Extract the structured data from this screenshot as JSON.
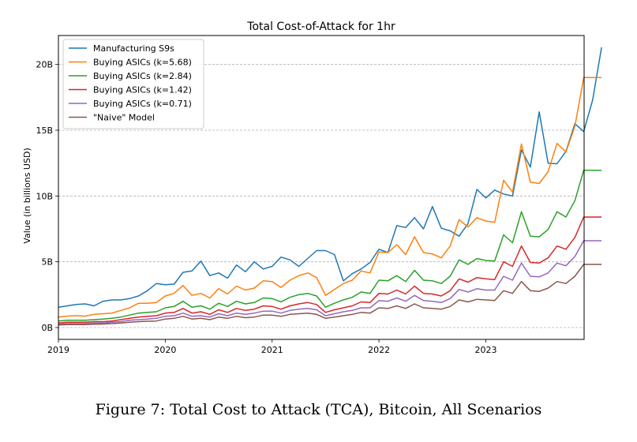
{
  "caption": "Figure 7: Total Cost to Attack (TCA), Bitcoin, All Scenarios",
  "chart_data": {
    "type": "line",
    "title": "Total Cost-of-Attack for 1hr",
    "xlabel": "",
    "ylabel": "Value (in billions USD)",
    "xlim": [
      2019.0,
      2023.92
    ],
    "ylim": [
      -0.9,
      22.2
    ],
    "x_ticks": [
      2019,
      2020,
      2021,
      2022,
      2023
    ],
    "y_ticks": [
      {
        "value": 0,
        "label": "0B"
      },
      {
        "value": 5,
        "label": "5B"
      },
      {
        "value": 10,
        "label": "10B"
      },
      {
        "value": 15,
        "label": "15B"
      },
      {
        "value": 20,
        "label": "20B"
      }
    ],
    "grid": "horizontal dashed",
    "legend_position": "top-left",
    "x_start_year": 2019,
    "x_step_months": 1,
    "series": [
      {
        "name": "Manufacturing S9s",
        "color": "#1f77b4",
        "values": [
          1.55,
          1.65,
          1.75,
          1.8,
          1.65,
          2.0,
          2.1,
          2.1,
          2.2,
          2.4,
          2.8,
          3.35,
          3.25,
          3.3,
          4.2,
          4.3,
          5.05,
          3.95,
          4.15,
          3.75,
          4.75,
          4.25,
          5.0,
          4.45,
          4.65,
          5.35,
          5.15,
          4.65,
          5.25,
          5.85,
          5.85,
          5.55,
          3.55,
          4.1,
          4.45,
          4.95,
          5.95,
          5.7,
          7.75,
          7.6,
          8.35,
          7.5,
          9.2,
          7.55,
          7.35,
          6.95,
          7.9,
          10.5,
          9.85,
          10.45,
          10.15,
          10.0,
          13.5,
          12.2,
          16.4,
          12.5,
          12.45,
          13.4,
          15.5,
          14.9,
          17.3,
          21.3
        ]
      },
      {
        "name": "Buying ASICs (k=5.68)",
        "color": "#ff7f0e",
        "values": [
          0.8,
          0.87,
          0.9,
          0.87,
          1.0,
          1.05,
          1.1,
          1.3,
          1.5,
          1.85,
          1.85,
          1.9,
          2.4,
          2.6,
          3.2,
          2.45,
          2.6,
          2.25,
          2.95,
          2.55,
          3.15,
          2.85,
          3.0,
          3.55,
          3.5,
          3.05,
          3.6,
          3.95,
          4.15,
          3.8,
          2.45,
          2.9,
          3.35,
          3.6,
          4.3,
          4.15,
          5.75,
          5.7,
          6.3,
          5.55,
          6.9,
          5.7,
          5.6,
          5.3,
          6.2,
          8.2,
          7.65,
          8.35,
          8.1,
          8.0,
          11.2,
          10.3,
          13.95,
          11.05,
          10.95,
          11.85,
          14.0,
          13.35,
          15.3,
          19.0,
          19.0,
          19.0
        ]
      },
      {
        "name": "Buying ASICs (k=2.84)",
        "color": "#2ca02c",
        "values": [
          0.5,
          0.55,
          0.55,
          0.55,
          0.6,
          0.65,
          0.7,
          0.8,
          0.95,
          1.1,
          1.15,
          1.2,
          1.5,
          1.6,
          2.0,
          1.55,
          1.65,
          1.4,
          1.85,
          1.6,
          2.0,
          1.8,
          1.9,
          2.25,
          2.2,
          1.95,
          2.3,
          2.5,
          2.6,
          2.4,
          1.55,
          1.85,
          2.1,
          2.3,
          2.7,
          2.6,
          3.6,
          3.55,
          3.95,
          3.5,
          4.35,
          3.6,
          3.55,
          3.35,
          3.9,
          5.15,
          4.8,
          5.25,
          5.1,
          5.05,
          7.05,
          6.45,
          8.8,
          6.95,
          6.9,
          7.45,
          8.8,
          8.4,
          9.65,
          11.95,
          11.95,
          11.95
        ]
      },
      {
        "name": "Buying ASICs (k=1.42)",
        "color": "#d62728",
        "values": [
          0.35,
          0.4,
          0.4,
          0.4,
          0.45,
          0.45,
          0.5,
          0.6,
          0.7,
          0.8,
          0.85,
          0.9,
          1.1,
          1.15,
          1.45,
          1.1,
          1.2,
          1.0,
          1.35,
          1.15,
          1.45,
          1.3,
          1.4,
          1.65,
          1.6,
          1.4,
          1.65,
          1.8,
          1.9,
          1.75,
          1.15,
          1.35,
          1.5,
          1.65,
          1.95,
          1.9,
          2.6,
          2.55,
          2.85,
          2.55,
          3.15,
          2.6,
          2.55,
          2.4,
          2.8,
          3.7,
          3.45,
          3.8,
          3.7,
          3.65,
          5.0,
          4.65,
          6.2,
          4.95,
          4.9,
          5.3,
          6.2,
          5.95,
          6.85,
          8.4,
          8.4,
          8.4
        ]
      },
      {
        "name": "Buying ASICs (k=0.71)",
        "color": "#9467bd",
        "values": [
          0.25,
          0.3,
          0.3,
          0.3,
          0.35,
          0.35,
          0.4,
          0.45,
          0.55,
          0.6,
          0.65,
          0.7,
          0.85,
          0.9,
          1.1,
          0.85,
          0.9,
          0.8,
          1.05,
          0.9,
          1.1,
          1.0,
          1.1,
          1.25,
          1.25,
          1.1,
          1.3,
          1.4,
          1.45,
          1.35,
          0.9,
          1.05,
          1.2,
          1.3,
          1.5,
          1.5,
          2.05,
          2.0,
          2.25,
          2.0,
          2.45,
          2.05,
          2.0,
          1.9,
          2.2,
          2.9,
          2.7,
          2.95,
          2.85,
          2.85,
          3.9,
          3.6,
          4.9,
          3.9,
          3.85,
          4.15,
          4.9,
          4.7,
          5.4,
          6.6,
          6.6,
          6.6
        ]
      },
      {
        "name": "\"Naive\" Model",
        "color": "#8c564b",
        "values": [
          0.2,
          0.22,
          0.22,
          0.22,
          0.25,
          0.27,
          0.3,
          0.35,
          0.4,
          0.45,
          0.48,
          0.5,
          0.65,
          0.7,
          0.85,
          0.65,
          0.7,
          0.6,
          0.8,
          0.7,
          0.85,
          0.75,
          0.8,
          0.95,
          0.95,
          0.85,
          1.0,
          1.05,
          1.1,
          1.0,
          0.7,
          0.8,
          0.9,
          1.0,
          1.15,
          1.1,
          1.5,
          1.45,
          1.65,
          1.45,
          1.8,
          1.5,
          1.45,
          1.4,
          1.6,
          2.1,
          1.95,
          2.15,
          2.1,
          2.05,
          2.8,
          2.6,
          3.5,
          2.8,
          2.75,
          3.0,
          3.5,
          3.35,
          3.9,
          4.8,
          4.8,
          4.8
        ]
      }
    ]
  }
}
